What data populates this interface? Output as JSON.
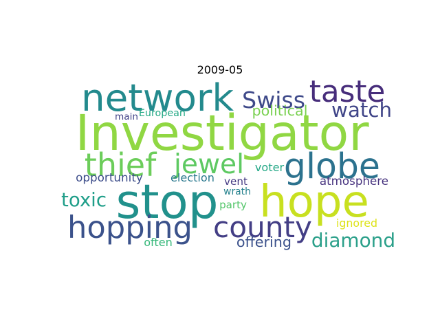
{
  "title": "2009-05",
  "words": [
    {
      "text": "Investigator",
      "color": "#90d743"
    },
    {
      "text": "stop",
      "color": "#21918c"
    },
    {
      "text": "hope",
      "color": "#c8e020"
    },
    {
      "text": "network",
      "color": "#238a8d"
    },
    {
      "text": "taste",
      "color": "#472d7b"
    },
    {
      "text": "globe",
      "color": "#2c728e"
    },
    {
      "text": "hopping",
      "color": "#3b528b"
    },
    {
      "text": "county",
      "color": "#433e85"
    },
    {
      "text": "thief",
      "color": "#6ccd5a"
    },
    {
      "text": "jewel",
      "color": "#5ec962"
    },
    {
      "text": "Swiss",
      "color": "#3e4989"
    },
    {
      "text": "diamond",
      "color": "#2ba08a"
    },
    {
      "text": "watch",
      "color": "#404588"
    },
    {
      "text": "toxic",
      "color": "#1f9e89"
    },
    {
      "text": "offering",
      "color": "#3b518b"
    },
    {
      "text": "political",
      "color": "#7ad151"
    },
    {
      "text": "atmosphere",
      "color": "#46327e"
    },
    {
      "text": "opportunity",
      "color": "#3d4d8a"
    },
    {
      "text": "election",
      "color": "#2a788e"
    },
    {
      "text": "European",
      "color": "#22a884"
    },
    {
      "text": "main",
      "color": "#414287"
    },
    {
      "text": "voter",
      "color": "#22a785"
    },
    {
      "text": "vent",
      "color": "#443983"
    },
    {
      "text": "wrath",
      "color": "#26828e"
    },
    {
      "text": "party",
      "color": "#52c569"
    },
    {
      "text": "ignored",
      "color": "#dde318"
    },
    {
      "text": "often",
      "color": "#35b779"
    }
  ]
}
